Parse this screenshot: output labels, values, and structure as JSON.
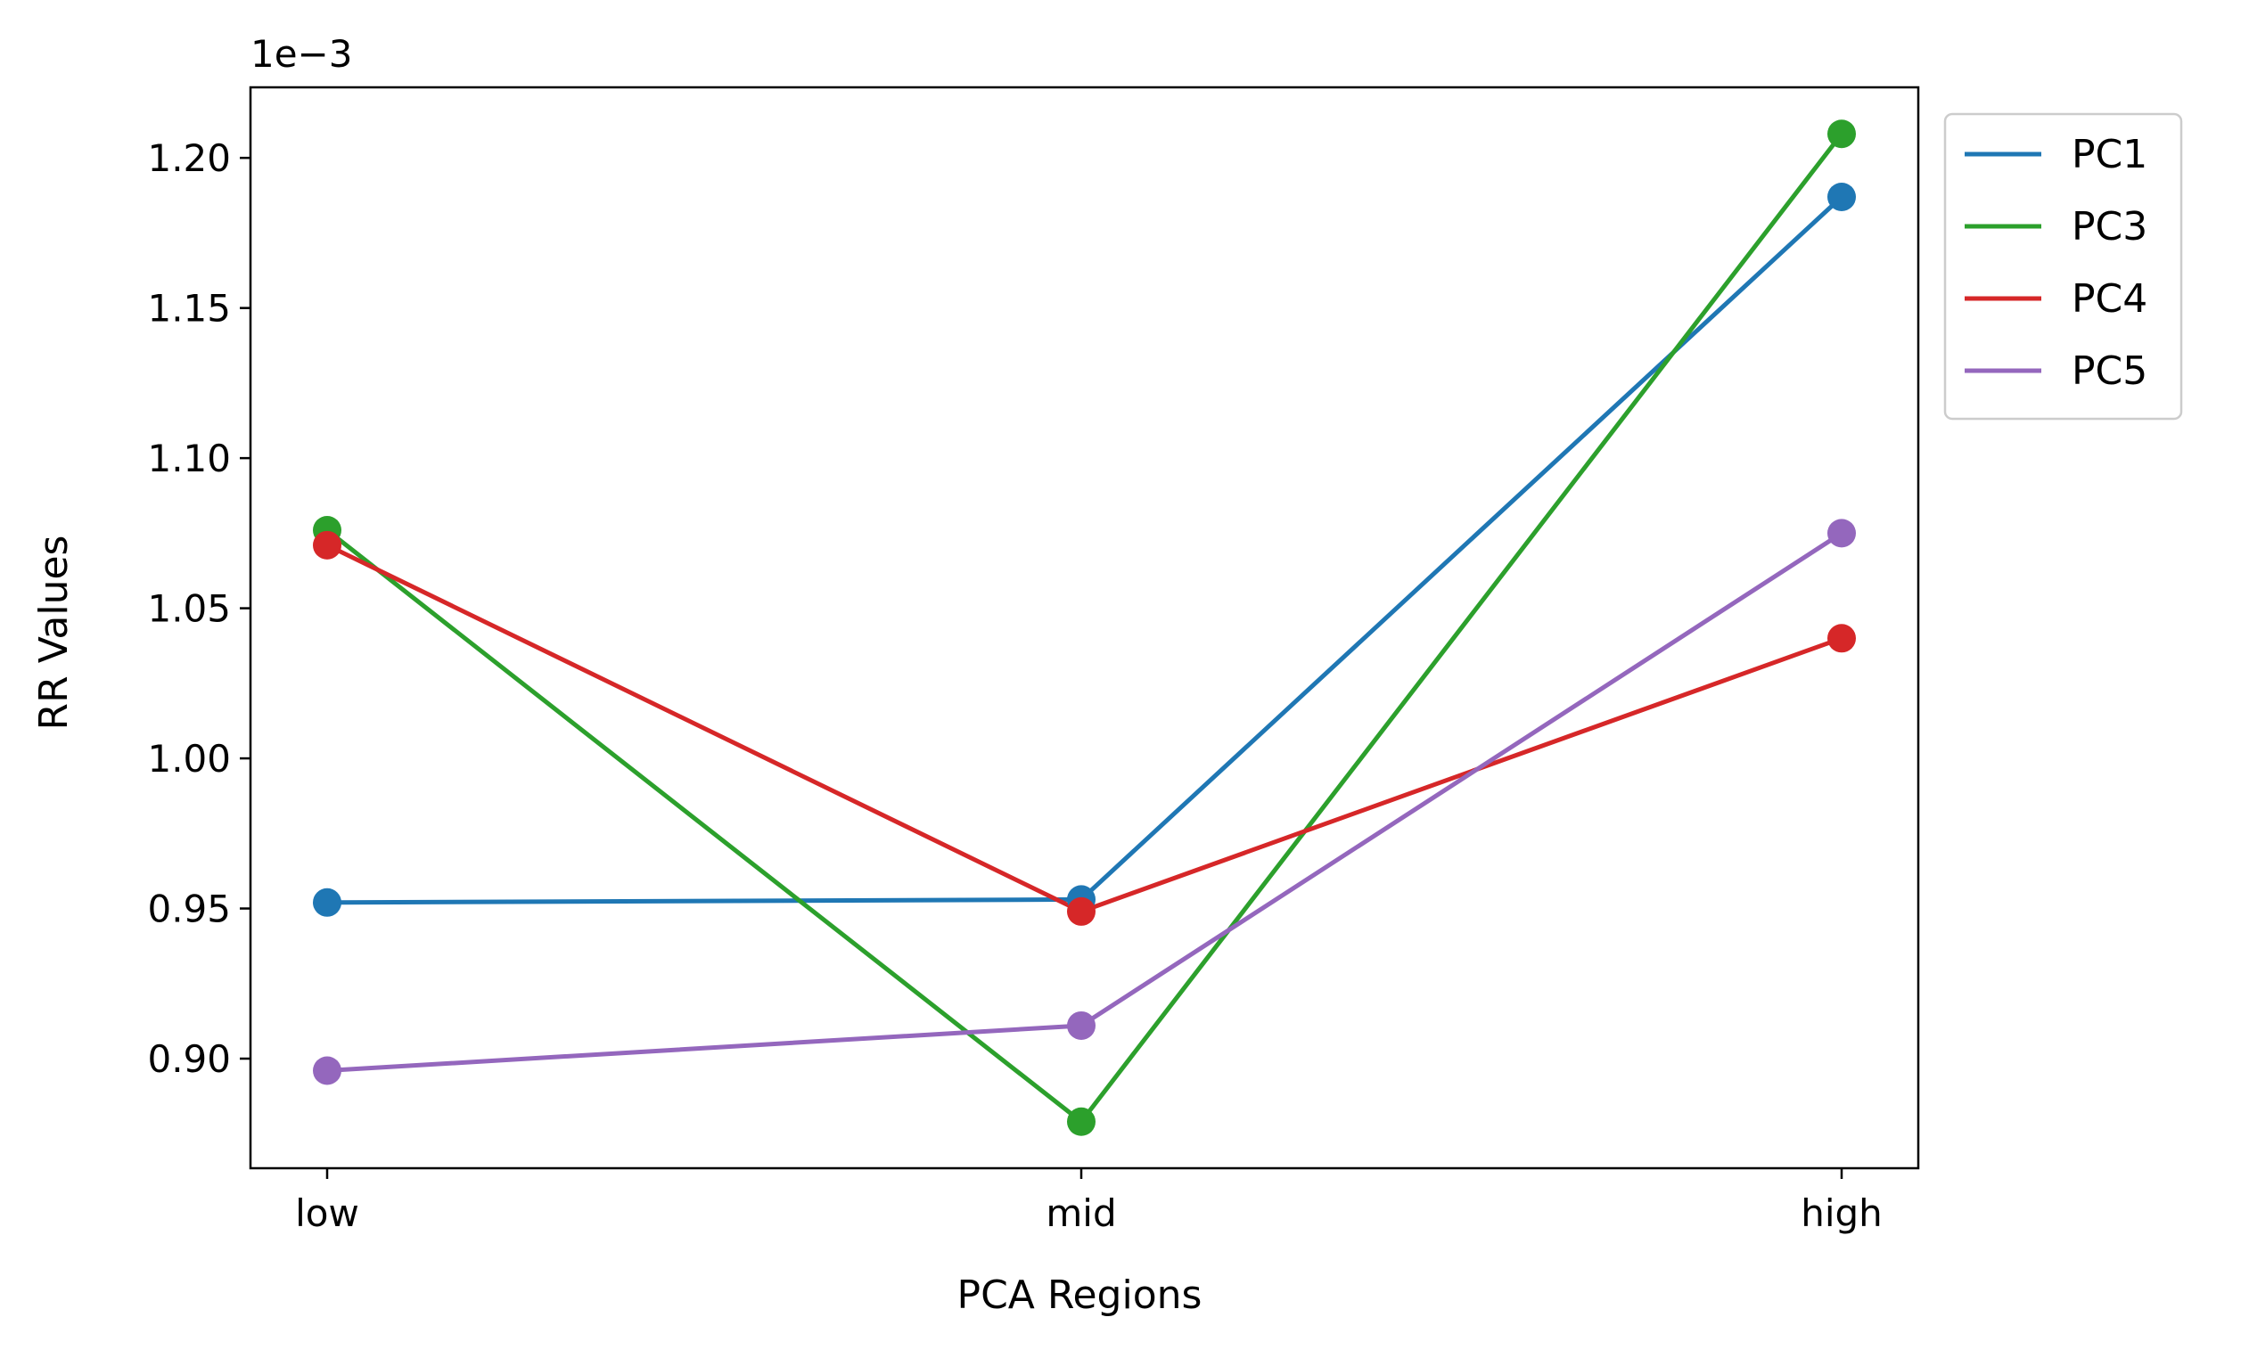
{
  "chart_data": {
    "type": "line",
    "title": "",
    "xlabel": "PCA Regions",
    "ylabel": "RR Values",
    "y_offset_label": "1e−3",
    "categories": [
      "low",
      "mid",
      "high"
    ],
    "ylim": [
      0.8635,
      1.2235
    ],
    "y_ticks": [
      0.9,
      0.95,
      1.0,
      1.05,
      1.1,
      1.15,
      1.2
    ],
    "y_tick_labels": [
      "0.90",
      "0.95",
      "1.00",
      "1.05",
      "1.10",
      "1.15",
      "1.20"
    ],
    "grid": false,
    "legend_position": "outside-top-right",
    "series": [
      {
        "name": "PC1",
        "color": "#1f77b4",
        "values": [
          0.952,
          0.953,
          1.187
        ]
      },
      {
        "name": "PC3",
        "color": "#2ca02c",
        "values": [
          1.076,
          0.879,
          1.208
        ]
      },
      {
        "name": "PC4",
        "color": "#d62728",
        "values": [
          1.071,
          0.949,
          1.04
        ]
      },
      {
        "name": "PC5",
        "color": "#9467bd",
        "values": [
          0.896,
          0.911,
          1.075
        ]
      }
    ]
  }
}
